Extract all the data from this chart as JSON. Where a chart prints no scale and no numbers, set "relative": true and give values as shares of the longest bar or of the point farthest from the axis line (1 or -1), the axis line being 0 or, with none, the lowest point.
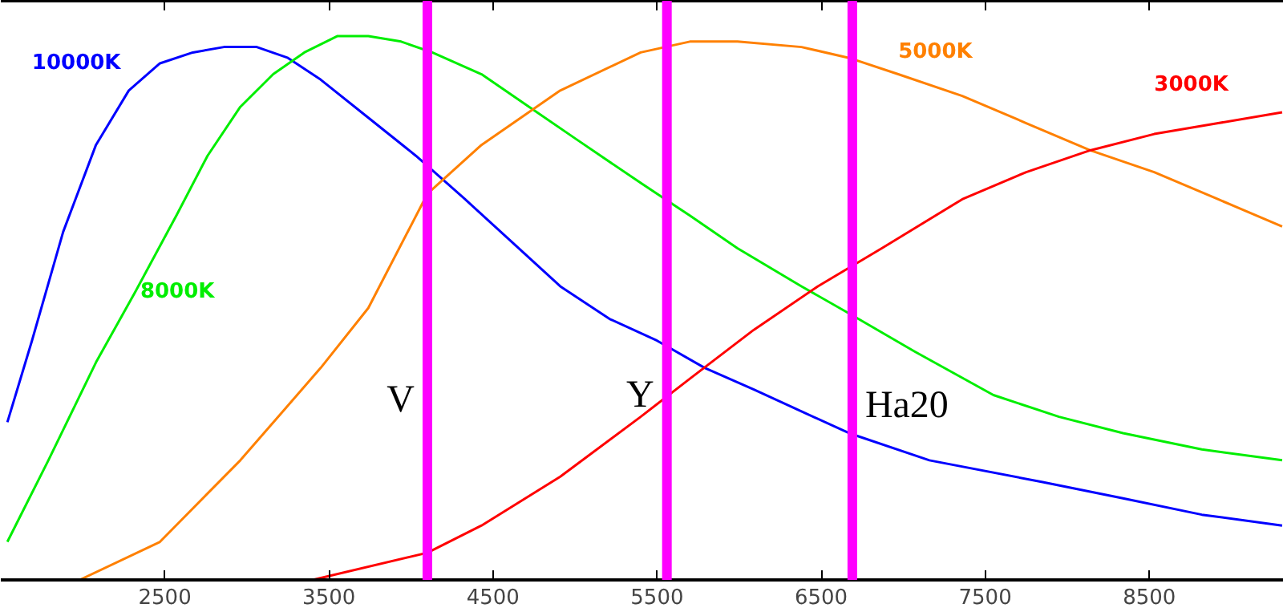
{
  "chart_data": {
    "type": "line",
    "relative": true,
    "xlim": [
      1500,
      9320
    ],
    "xticks": [
      2500,
      3500,
      4500,
      5500,
      6500,
      7500,
      8500
    ],
    "tick_labels": "x",
    "grid": false,
    "marker": "none",
    "line_style": "solid",
    "series": [
      {
        "name": "10000K",
        "color": "#0000ff",
        "x": [
          1540,
          1690,
          1880,
          2080,
          2280,
          2470,
          2670,
          2860,
          3060,
          3250,
          3450,
          3740,
          4030,
          4330,
          4620,
          4910,
          5210,
          5500,
          5790,
          6090,
          6380,
          6670,
          7160,
          7850,
          8340,
          8820,
          9310
        ],
        "values": [
          0.29,
          0.44,
          0.64,
          0.8,
          0.9,
          0.95,
          0.97,
          0.98,
          0.98,
          0.96,
          0.92,
          0.85,
          0.78,
          0.7,
          0.62,
          0.54,
          0.48,
          0.44,
          0.39,
          0.35,
          0.31,
          0.27,
          0.22,
          0.18,
          0.15,
          0.12,
          0.1
        ]
      },
      {
        "name": "8000K",
        "color": "#00ee00",
        "x": [
          1540,
          1790,
          2080,
          2320,
          2570,
          2760,
          2960,
          3160,
          3350,
          3550,
          3740,
          3940,
          4130,
          4430,
          4720,
          5010,
          5400,
          5700,
          5990,
          6380,
          6670,
          7070,
          7550,
          7950,
          8340,
          8820,
          9310
        ],
        "values": [
          0.07,
          0.22,
          0.4,
          0.53,
          0.67,
          0.78,
          0.87,
          0.93,
          0.97,
          1.0,
          1.0,
          0.99,
          0.97,
          0.93,
          0.87,
          0.81,
          0.73,
          0.67,
          0.61,
          0.54,
          0.49,
          0.42,
          0.34,
          0.3,
          0.27,
          0.24,
          0.22
        ]
      },
      {
        "name": "5000K",
        "color": "#ff8000",
        "x": [
          1980,
          2470,
          2960,
          3450,
          3740,
          4100,
          4430,
          4910,
          5400,
          5700,
          5990,
          6380,
          6670,
          6970,
          7360,
          7750,
          8140,
          8530,
          8920,
          9310
        ],
        "values": [
          0,
          0.07,
          0.22,
          0.39,
          0.5,
          0.71,
          0.8,
          0.9,
          0.97,
          0.99,
          0.99,
          0.98,
          0.96,
          0.93,
          0.89,
          0.84,
          0.79,
          0.75,
          0.7,
          0.65
        ]
      },
      {
        "name": "3000K",
        "color": "#ff0000",
        "x": [
          3400,
          4100,
          4430,
          4910,
          5400,
          5700,
          6090,
          6480,
          6870,
          7360,
          7750,
          8140,
          8530,
          8920,
          9310
        ],
        "values": [
          0,
          0.05,
          0.1,
          0.19,
          0.3,
          0.37,
          0.46,
          0.54,
          0.61,
          0.7,
          0.75,
          0.79,
          0.82,
          0.84,
          0.86
        ]
      }
    ],
    "ref_lines": [
      {
        "axis": "x",
        "value": 4100,
        "label": "V",
        "color": "#ff00ff"
      },
      {
        "axis": "x",
        "value": 5560,
        "label": "Y",
        "color": "#ff00ff"
      },
      {
        "axis": "x",
        "value": 6690,
        "label": "Ha20",
        "color": "#ff00ff"
      }
    ]
  }
}
